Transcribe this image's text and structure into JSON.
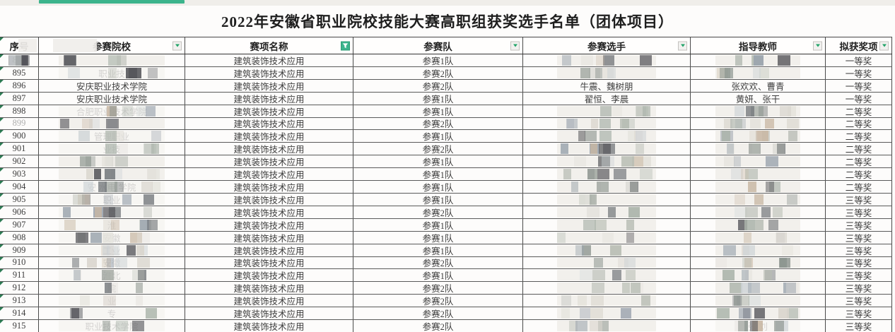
{
  "title": "2022年安徽省职业院校技能大赛高职组获奖选手名单（团体项目）",
  "columns": [
    {
      "key": "sn",
      "label": "序号",
      "filter": "none"
    },
    {
      "key": "inst",
      "label": "参赛院校",
      "filter": "dropdown"
    },
    {
      "key": "event",
      "label": "赛项名称",
      "filter": "active"
    },
    {
      "key": "team",
      "label": "参赛队",
      "filter": "dropdown"
    },
    {
      "key": "players",
      "label": "参赛选手",
      "filter": "dropdown"
    },
    {
      "key": "teachers",
      "label": "指导教师",
      "filter": "dropdown"
    },
    {
      "key": "award",
      "label": "拟获奖项",
      "filter": "dropdown"
    }
  ],
  "rows": [
    {
      "sn": "894",
      "sn_style": "masked",
      "inst": "",
      "inst_mask": "full",
      "event": "建筑装饰技术应用",
      "team": "参赛1队",
      "players": "",
      "players_mask": "full",
      "teachers": "",
      "teachers_mask": "full",
      "award": "一等奖"
    },
    {
      "sn": "895",
      "sn_style": "normal",
      "inst": "职业技",
      "inst_mask": "partial",
      "event": "建筑装饰技术应用",
      "team": "参赛2队",
      "players": "",
      "players_mask": "full",
      "teachers": "",
      "teachers_mask": "full",
      "award": "一等奖"
    },
    {
      "sn": "896",
      "sn_style": "normal",
      "inst": "安庆职业技术学院",
      "inst_mask": "none",
      "event": "建筑装饰技术应用",
      "team": "参赛2队",
      "players": "牛震、魏树朋",
      "players_mask": "none",
      "teachers": "张欢欢、曹青",
      "teachers_mask": "none",
      "award": "一等奖"
    },
    {
      "sn": "897",
      "sn_style": "normal",
      "inst": "安庆职业技术学院",
      "inst_mask": "none",
      "event": "建筑装饰技术应用",
      "team": "参赛1队",
      "players": "翟恒、李晨",
      "players_mask": "none",
      "teachers": "黄妍、张干",
      "teachers_mask": "none",
      "award": "一等奖"
    },
    {
      "sn": "898",
      "sn_style": "normal",
      "inst": "合肥职业技术学院",
      "inst_mask": "partial",
      "event": "建筑装饰技术应用",
      "team": "参赛1队",
      "players": "",
      "players_mask": "full",
      "teachers": "",
      "teachers_mask": "full",
      "award": "二等奖"
    },
    {
      "sn": "899",
      "sn_style": "faint",
      "inst": "",
      "inst_mask": "full",
      "event": "建筑装饰技术应用",
      "team": "参赛2队",
      "players": "",
      "players_mask": "full",
      "teachers": "",
      "teachers_mask": "full",
      "award": "二等奖"
    },
    {
      "sn": "900",
      "sn_style": "normal",
      "inst": "管理职业",
      "inst_mask": "partial",
      "event": "建筑装饰技术应用",
      "team": "参赛1队",
      "players": "",
      "players_mask": "full",
      "teachers": "",
      "teachers_mask": "full",
      "award": "二等奖"
    },
    {
      "sn": "901",
      "sn_style": "normal",
      "inst": "业技",
      "inst_mask": "partial",
      "event": "建筑装饰技术应用",
      "team": "参赛2队",
      "players": "",
      "players_mask": "full",
      "teachers": "",
      "teachers_mask": "full",
      "award": "二等奖"
    },
    {
      "sn": "902",
      "sn_style": "normal",
      "inst": "",
      "inst_mask": "full",
      "event": "建筑装饰技术应用",
      "team": "参赛1队",
      "players": "",
      "players_mask": "full",
      "teachers": "",
      "teachers_mask": "full",
      "award": "二等奖"
    },
    {
      "sn": "903",
      "sn_style": "normal",
      "inst": "",
      "inst_mask": "full",
      "event": "建筑装饰技术应用",
      "team": "参赛1队",
      "players": "",
      "players_mask": "full",
      "teachers": "",
      "teachers_mask": "full",
      "award": "二等奖"
    },
    {
      "sn": "904",
      "sn_style": "normal",
      "inst": "安  水电  学院",
      "inst_mask": "partial",
      "event": "建筑装饰技术应用",
      "team": "参赛1队",
      "players": "",
      "players_mask": "full",
      "teachers": "",
      "teachers_mask": "full",
      "award": "二等奖"
    },
    {
      "sn": "905",
      "sn_style": "normal",
      "inst": "职业",
      "inst_mask": "partial",
      "event": "建筑装饰技术应用",
      "team": "参赛1队",
      "players": "",
      "players_mask": "full",
      "teachers": "",
      "teachers_mask": "full",
      "award": "三等奖"
    },
    {
      "sn": "906",
      "sn_style": "normal",
      "inst": "院",
      "inst_mask": "partial",
      "event": "建筑装饰技术应用",
      "team": "参赛2队",
      "players": "",
      "players_mask": "full",
      "teachers": "",
      "teachers_mask": "full",
      "award": "三等奖"
    },
    {
      "sn": "907",
      "sn_style": "normal",
      "inst": "淮",
      "inst_mask": "partial",
      "event": "建筑装饰技术应用",
      "team": "参赛1队",
      "players": "",
      "players_mask": "full",
      "teachers": "",
      "teachers_mask": "full",
      "award": "三等奖"
    },
    {
      "sn": "908",
      "sn_style": "normal",
      "inst": "安徽",
      "inst_mask": "partial",
      "event": "建筑装饰技术应用",
      "team": "参赛1队",
      "players": "",
      "players_mask": "full",
      "teachers": "",
      "teachers_mask": "full",
      "award": "三等奖"
    },
    {
      "sn": "909",
      "sn_style": "normal",
      "inst": "工业",
      "inst_mask": "partial",
      "event": "建筑装饰技术应用",
      "team": "参赛1队",
      "players": "",
      "players_mask": "full",
      "teachers": "",
      "teachers_mask": "full",
      "award": "三等奖"
    },
    {
      "sn": "910",
      "sn_style": "normal",
      "inst": "安徽",
      "inst_mask": "partial",
      "event": "建筑装饰技术应用",
      "team": "参赛2队",
      "players": "",
      "players_mask": "full",
      "teachers": "",
      "teachers_mask": "full",
      "award": "三等奖"
    },
    {
      "sn": "911",
      "sn_style": "normal",
      "inst": "淮北",
      "inst_mask": "partial",
      "event": "建筑装饰技术应用",
      "team": "参赛1队",
      "players": "",
      "players_mask": "full",
      "teachers": "",
      "teachers_mask": "full",
      "award": "三等奖"
    },
    {
      "sn": "912",
      "sn_style": "normal",
      "inst": "院",
      "inst_mask": "partial",
      "event": "建筑装饰技术应用",
      "team": "参赛2队",
      "players": "",
      "players_mask": "full",
      "teachers": "",
      "teachers_mask": "full",
      "award": "三等奖"
    },
    {
      "sn": "913",
      "sn_style": "normal",
      "inst": "业",
      "inst_mask": "partial",
      "event": "建筑装饰技术应用",
      "team": "参赛2队",
      "players": "",
      "players_mask": "full",
      "teachers": "",
      "teachers_mask": "full",
      "award": "三等奖"
    },
    {
      "sn": "914",
      "sn_style": "normal",
      "inst": "专",
      "inst_mask": "partial",
      "event": "建筑装饰技术应用",
      "team": "参赛2队",
      "players": "",
      "players_mask": "full",
      "teachers": "",
      "teachers_mask": "full",
      "award": "三等奖"
    },
    {
      "sn": "915",
      "sn_style": "normal",
      "inst": "职业技术学院",
      "inst_mask": "partial",
      "event": "建筑装饰技术应用",
      "team": "参赛2队",
      "players": "",
      "players_mask": "full",
      "teachers": "张  刘",
      "teachers_mask": "partial",
      "award": "三等奖"
    }
  ],
  "colors": {
    "accent_green": "#3cb48c",
    "filter_arrow_green": "#21a368",
    "text": "#3d3d3d",
    "faint_text": "#9b9b9b",
    "border": "#474747",
    "top_strip": "#f0eeea"
  },
  "mosaic_palette": [
    "#b7bcb3",
    "#d9d5cd",
    "#9aa3ad",
    "#c8b7a3",
    "#6f7377",
    "#e3e1db",
    "#aab3aa",
    "#55555a",
    "#8d958f",
    "#cdd3d6"
  ]
}
